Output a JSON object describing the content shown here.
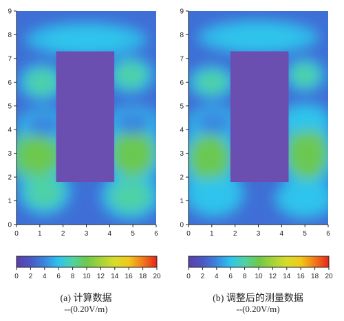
{
  "chart_data": [
    {
      "type": "heatmap",
      "caption": "(a) 计算数据",
      "unit": "--(0.20V/m)",
      "xlabel": "",
      "ylabel": "",
      "xlim": [
        0,
        6
      ],
      "ylim": [
        0,
        9
      ],
      "x_ticks": [
        "0",
        "1",
        "2",
        "3",
        "4",
        "5",
        "6"
      ],
      "y_ticks": [
        "0",
        "1",
        "2",
        "3",
        "4",
        "5",
        "6",
        "7",
        "8",
        "9"
      ],
      "obstacle": {
        "x0": 1.7,
        "x1": 4.2,
        "y0": 1.8,
        "y1": 7.3
      },
      "hotspots": [
        {
          "x": 0.9,
          "y": 2.9,
          "value": 10,
          "rx": 0.9,
          "ry": 0.9
        },
        {
          "x": 5.0,
          "y": 3.0,
          "value": 9,
          "rx": 0.95,
          "ry": 1.0
        },
        {
          "x": 1.1,
          "y": 6.0,
          "value": 8,
          "rx": 0.7,
          "ry": 0.55
        },
        {
          "x": 4.9,
          "y": 6.3,
          "value": 8,
          "rx": 0.7,
          "ry": 0.55
        },
        {
          "x": 1.2,
          "y": 1.4,
          "value": 7,
          "rx": 0.8,
          "ry": 0.7
        },
        {
          "x": 4.9,
          "y": 1.2,
          "value": 7,
          "rx": 0.9,
          "ry": 0.7
        },
        {
          "x": 3.0,
          "y": 7.8,
          "value": 5,
          "rx": 1.8,
          "ry": 0.5
        },
        {
          "x": 1.2,
          "y": 4.2,
          "value": 4,
          "rx": 0.8,
          "ry": 0.5
        },
        {
          "x": 5.0,
          "y": 4.3,
          "value": 4,
          "rx": 0.8,
          "ry": 0.5
        }
      ],
      "colorbar": {
        "min": 0,
        "max": 20,
        "ticks": [
          "0",
          "2",
          "4",
          "6",
          "8",
          "10",
          "12",
          "14",
          "16",
          "18",
          "20"
        ]
      }
    },
    {
      "type": "heatmap",
      "caption": "(b) 调整后的测量数据",
      "unit": "--(0.20V/m)",
      "xlabel": "",
      "ylabel": "",
      "xlim": [
        0,
        6
      ],
      "ylim": [
        0,
        9
      ],
      "x_ticks": [
        "0",
        "1",
        "2",
        "3",
        "4",
        "5",
        "6"
      ],
      "y_ticks": [
        "0",
        "1",
        "2",
        "3",
        "4",
        "5",
        "6",
        "7",
        "8",
        "9"
      ],
      "obstacle": {
        "x0": 1.8,
        "x1": 4.3,
        "y0": 1.8,
        "y1": 7.3
      },
      "hotspots": [
        {
          "x": 0.9,
          "y": 2.8,
          "value": 9,
          "rx": 0.9,
          "ry": 1.0
        },
        {
          "x": 5.1,
          "y": 3.0,
          "value": 9,
          "rx": 0.9,
          "ry": 1.1
        },
        {
          "x": 1.0,
          "y": 6.0,
          "value": 7,
          "rx": 0.7,
          "ry": 0.5
        },
        {
          "x": 5.0,
          "y": 6.3,
          "value": 8,
          "rx": 0.6,
          "ry": 0.5
        },
        {
          "x": 1.1,
          "y": 1.3,
          "value": 6,
          "rx": 0.9,
          "ry": 0.7
        },
        {
          "x": 5.0,
          "y": 1.1,
          "value": 6,
          "rx": 0.9,
          "ry": 0.6
        },
        {
          "x": 3.0,
          "y": 7.9,
          "value": 5,
          "rx": 1.8,
          "ry": 0.5
        },
        {
          "x": 1.1,
          "y": 4.3,
          "value": 4,
          "rx": 0.8,
          "ry": 0.5
        },
        {
          "x": 5.0,
          "y": 4.4,
          "value": 5,
          "rx": 0.8,
          "ry": 0.5
        }
      ],
      "colorbar": {
        "min": 0,
        "max": 20,
        "ticks": [
          "0",
          "2",
          "4",
          "6",
          "8",
          "10",
          "12",
          "14",
          "16",
          "18",
          "20"
        ]
      }
    }
  ],
  "colorscale": [
    {
      "value": 0,
      "color": "#5b3fa8"
    },
    {
      "value": 2,
      "color": "#4a57c2"
    },
    {
      "value": 4,
      "color": "#3a86e0"
    },
    {
      "value": 6,
      "color": "#2ec4ec"
    },
    {
      "value": 8,
      "color": "#4fd2a4"
    },
    {
      "value": 10,
      "color": "#6ec84a"
    },
    {
      "value": 12,
      "color": "#a6d23a"
    },
    {
      "value": 14,
      "color": "#d8dc2a"
    },
    {
      "value": 16,
      "color": "#f2c81a"
    },
    {
      "value": 18,
      "color": "#f07a1a"
    },
    {
      "value": 20,
      "color": "#e8251a"
    }
  ],
  "colors": {
    "background_field": "#3f6fd6",
    "obstacle": "#6b4fb0",
    "axis": "#222222"
  }
}
